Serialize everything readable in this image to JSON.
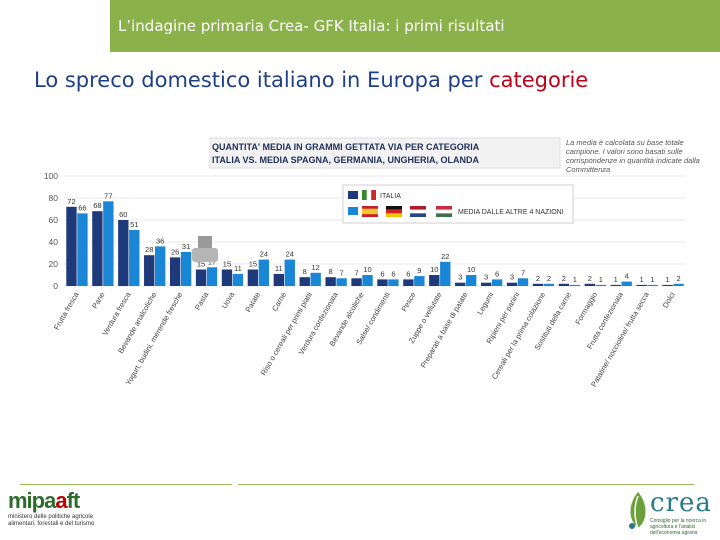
{
  "header": {
    "title": "L’indagine primaria Crea- GFK Italia: i primi risultati"
  },
  "slide": {
    "title_main": "Lo spreco domestico italiano in Europa per ",
    "title_accent": "categorie"
  },
  "chart_data": {
    "type": "bar",
    "title": "QUANTITA' MEDIA IN GRAMMI GETTATA VIA PER CATEGORIA",
    "subtitle": "ITALIA VS. MEDIA SPAGNA, GERMANIA, UNGHERIA, OLANDA",
    "note": "La media è calcolata su base totale campione. I valori sono basati sulle corrispondenze in quantità indicate dalla Committenza",
    "ylim": [
      0,
      100
    ],
    "yticks": [
      0,
      20,
      40,
      60,
      80,
      100
    ],
    "grid": true,
    "legend_position": "top-center",
    "categories": [
      "Frutta fresca",
      "Pane",
      "Verdura fresca",
      "Bevande analcoliche",
      "Yogurt, budini, merende fresche",
      "Pasta",
      "Uova",
      "Patate",
      "Carne",
      "Riso o cereali per primi piatti",
      "Verdura confezionata",
      "Bevande alcoliche",
      "Salse/ condimenti",
      "Pesce",
      "Zuppe o vellutate",
      "Preparati a base di patate",
      "Legumi",
      "Ripieni per panini",
      "Cereali per la prima colazione",
      "Sostituti della carne",
      "Formaggio",
      "Frutta confezionata",
      "Patatine/ noccioline/ frutta secca",
      "Dolci"
    ],
    "series": [
      {
        "name": "ITALIA",
        "color": "#1f3a7a",
        "values": [
          72,
          68,
          60,
          28,
          26,
          15,
          15,
          15,
          11,
          8,
          8,
          7,
          6,
          6,
          10,
          3,
          3,
          3,
          2,
          2,
          2,
          1,
          1,
          1
        ]
      },
      {
        "name": "MEDIA DALLE ALTRE 4 NAZIONI",
        "color": "#1a86d6",
        "values": [
          66,
          77,
          51,
          36,
          31,
          17,
          11,
          24,
          24,
          12,
          7,
          10,
          6,
          9,
          22,
          10,
          6,
          7,
          2,
          1,
          1,
          4,
          1,
          2
        ]
      }
    ]
  },
  "footer": {
    "left_logo_a": "mipa",
    "left_logo_b": "a",
    "left_logo_c": "ft",
    "left_logo_sub": "ministero delle politiche agricole alimentari, forestali e del turismo",
    "right_logo": "crea",
    "right_logo_sub": "Consiglio per la ricerca in agricoltura e l'analisi dell'economia agraria"
  }
}
